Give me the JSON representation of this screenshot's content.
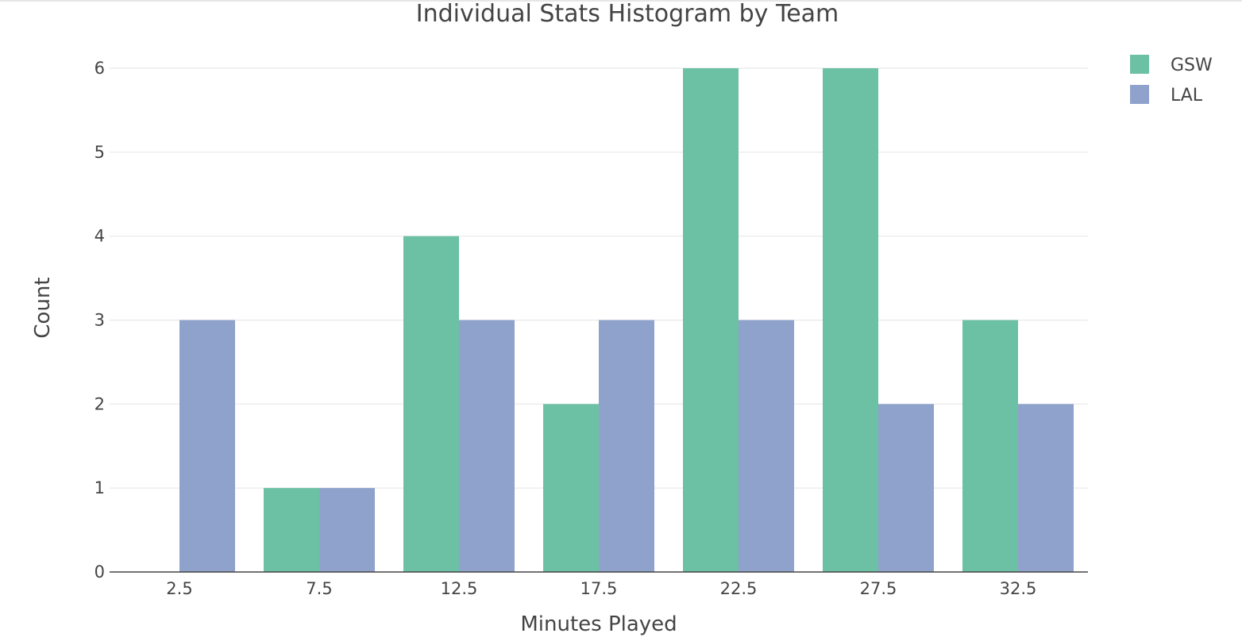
{
  "chart_data": {
    "type": "bar",
    "title": "Individual Stats Histogram by Team",
    "xlabel": "Minutes Played",
    "ylabel": "Count",
    "categories": [
      "2.5",
      "7.5",
      "12.5",
      "17.5",
      "22.5",
      "27.5",
      "32.5"
    ],
    "yticks": [
      "0",
      "1",
      "2",
      "3",
      "4",
      "5",
      "6"
    ],
    "ylim": [
      0,
      6
    ],
    "grid": true,
    "legend_position": "top-right",
    "series": [
      {
        "name": "GSW",
        "color": "#6cc1a5",
        "values": [
          0,
          1,
          4,
          2,
          6,
          6,
          3
        ]
      },
      {
        "name": "LAL",
        "color": "#8fa2cb",
        "values": [
          3,
          1,
          3,
          3,
          3,
          2,
          2
        ]
      }
    ]
  }
}
